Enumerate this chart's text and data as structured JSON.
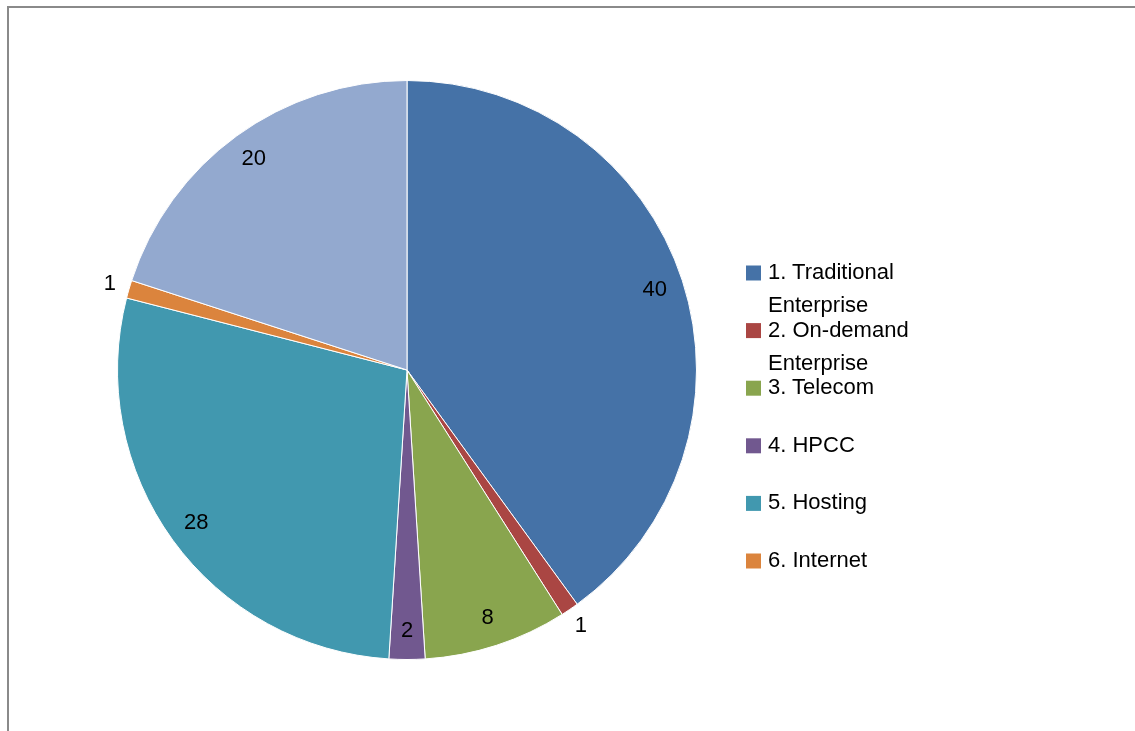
{
  "chart_data": {
    "type": "pie",
    "categories": [
      "1. Traditional Enterprise",
      "2. On-demand Enterprise",
      "3. Telecom",
      "4. HPCC",
      "5. Hosting",
      "6. Internet",
      null
    ],
    "values": [
      40,
      1,
      8,
      2,
      28,
      1,
      20
    ],
    "colors": [
      "#4572a7",
      "#aa4643",
      "#89a54e",
      "#71588f",
      "#4198af",
      "#db843d",
      "#93a9cf"
    ],
    "data_labels": true,
    "legend": "right"
  }
}
